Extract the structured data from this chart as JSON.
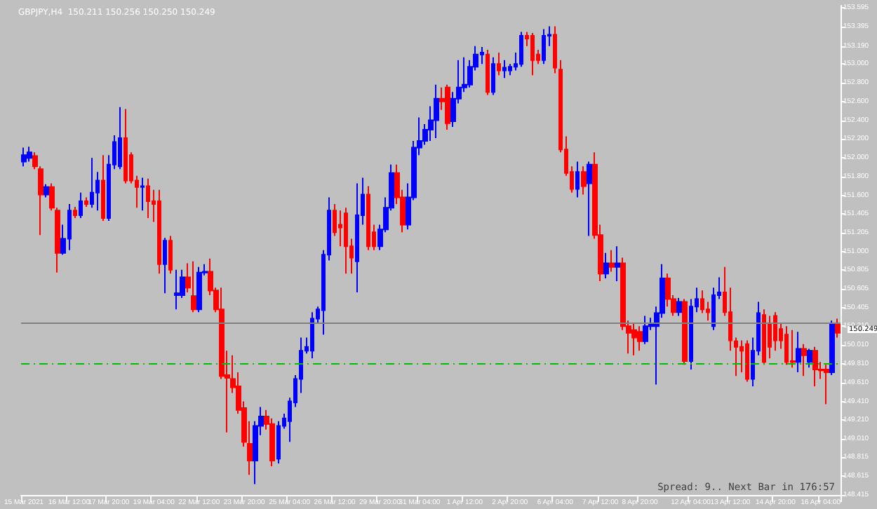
{
  "chart_data": {
    "type": "candlestick",
    "title": "GBPJPY,H4  150.211 150.256 150.250 150.249",
    "categories": [
      "15 Mar 2021",
      null,
      null,
      null,
      null,
      null,
      null,
      null,
      "16 Mar 12:00",
      null,
      null,
      null,
      null,
      null,
      null,
      "17 Mar 20:00",
      null,
      null,
      null,
      null,
      null,
      null,
      null,
      "19 Mar 04:00",
      null,
      null,
      null,
      null,
      null,
      null,
      null,
      "22 Mar 12:00",
      null,
      null,
      null,
      null,
      null,
      null,
      null,
      "23 Mar 20:00",
      null,
      null,
      null,
      null,
      null,
      null,
      null,
      "25 Mar 04:00",
      null,
      null,
      null,
      null,
      null,
      null,
      null,
      "26 Mar 12:00",
      null,
      null,
      null,
      null,
      null,
      null,
      null,
      "29 Mar 20:00",
      null,
      null,
      null,
      null,
      null,
      null,
      "31 Mar 04:00",
      null,
      null,
      null,
      null,
      null,
      null,
      null,
      "1 Apr 12:00",
      null,
      null,
      null,
      null,
      null,
      null,
      null,
      "2 Apr 20:00",
      null,
      null,
      null,
      null,
      null,
      null,
      null,
      "6 Apr 04:00",
      null,
      null,
      null,
      null,
      null,
      null,
      null,
      "7 Apr 12:00",
      null,
      null,
      null,
      null,
      null,
      null,
      "8 Apr 20:00",
      null,
      null,
      null,
      null,
      null,
      null,
      null,
      null,
      "12 Apr 04:00",
      null,
      null,
      null,
      null,
      null,
      null,
      "13 Apr 12:00",
      null,
      null,
      null,
      null,
      null,
      null,
      null,
      "14 Apr 20:00",
      null,
      null,
      null,
      null,
      null,
      null,
      null,
      "16 Apr 04:00",
      null,
      null,
      null
    ],
    "ohlc": [
      [
        151.96,
        152.11,
        151.91,
        152.03
      ],
      [
        152.0,
        152.12,
        151.96,
        152.06
      ],
      [
        152.02,
        152.06,
        151.88,
        151.91
      ],
      [
        151.88,
        151.91,
        151.18,
        151.61
      ],
      [
        151.61,
        151.72,
        151.58,
        151.69
      ],
      [
        151.69,
        151.73,
        151.44,
        151.47
      ],
      [
        151.44,
        151.47,
        150.78,
        150.99
      ],
      [
        150.99,
        151.29,
        150.97,
        151.14
      ],
      [
        151.14,
        151.51,
        151.02,
        151.44
      ],
      [
        151.44,
        151.48,
        151.36,
        151.39
      ],
      [
        151.39,
        151.63,
        151.36,
        151.54
      ],
      [
        151.54,
        151.58,
        151.48,
        151.51
      ],
      [
        151.51,
        152.0,
        151.47,
        151.63
      ],
      [
        151.63,
        151.85,
        151.44,
        151.76
      ],
      [
        151.76,
        152.03,
        151.33,
        151.36
      ],
      [
        151.36,
        152.03,
        151.33,
        151.93
      ],
      [
        151.93,
        152.24,
        151.88,
        152.17
      ],
      [
        151.91,
        152.54,
        151.88,
        152.21
      ],
      [
        152.21,
        152.52,
        151.73,
        151.76
      ],
      [
        152.03,
        152.06,
        151.73,
        151.76
      ],
      [
        151.76,
        151.81,
        151.47,
        151.69
      ],
      [
        151.69,
        151.79,
        151.44,
        151.7
      ],
      [
        151.7,
        151.78,
        151.36,
        151.54
      ],
      [
        151.54,
        151.66,
        151.32,
        151.51
      ],
      [
        151.54,
        151.66,
        150.77,
        150.87
      ],
      [
        150.87,
        151.15,
        150.56,
        151.12
      ],
      [
        151.12,
        151.17,
        150.77,
        150.81
      ],
      [
        150.54,
        150.81,
        150.39,
        150.56
      ],
      [
        150.54,
        150.81,
        150.51,
        150.73
      ],
      [
        150.73,
        150.88,
        150.57,
        150.62
      ],
      [
        150.53,
        150.9,
        150.36,
        150.39
      ],
      [
        150.39,
        150.84,
        150.36,
        150.78
      ],
      [
        150.78,
        150.87,
        150.75,
        150.79
      ],
      [
        150.79,
        150.93,
        150.54,
        150.59
      ],
      [
        150.59,
        150.62,
        150.36,
        150.39
      ],
      [
        150.39,
        150.62,
        149.65,
        149.68
      ],
      [
        149.69,
        149.95,
        149.08,
        149.66
      ],
      [
        149.65,
        149.9,
        149.5,
        149.56
      ],
      [
        149.57,
        149.72,
        149.28,
        149.32
      ],
      [
        149.34,
        149.41,
        148.93,
        148.98
      ],
      [
        148.96,
        149.2,
        148.63,
        148.78
      ],
      [
        148.78,
        149.2,
        148.53,
        149.15
      ],
      [
        149.15,
        149.35,
        149.05,
        149.25
      ],
      [
        149.25,
        149.32,
        149.11,
        149.17
      ],
      [
        149.17,
        149.23,
        148.72,
        148.78
      ],
      [
        148.8,
        149.2,
        148.75,
        149.15
      ],
      [
        149.15,
        149.28,
        149.12,
        149.23
      ],
      [
        149.2,
        149.45,
        148.98,
        149.41
      ],
      [
        149.4,
        149.69,
        149.35,
        149.65
      ],
      [
        149.65,
        150.09,
        149.5,
        149.95
      ],
      [
        149.95,
        150.09,
        149.92,
        149.99
      ],
      [
        149.95,
        150.36,
        149.87,
        150.29
      ],
      [
        150.29,
        150.42,
        150.24,
        150.39
      ],
      [
        150.38,
        151.02,
        150.12,
        150.97
      ],
      [
        150.97,
        151.58,
        150.91,
        151.44
      ],
      [
        151.44,
        151.51,
        151.17,
        151.21
      ],
      [
        151.29,
        151.44,
        151.06,
        151.26
      ],
      [
        151.41,
        151.47,
        150.77,
        151.06
      ],
      [
        151.06,
        151.14,
        150.77,
        150.94
      ],
      [
        150.9,
        151.73,
        150.57,
        151.39
      ],
      [
        151.39,
        151.79,
        151.29,
        151.61
      ],
      [
        151.61,
        151.7,
        151.02,
        151.06
      ],
      [
        151.21,
        151.29,
        151.02,
        151.06
      ],
      [
        151.06,
        151.29,
        151.02,
        151.24
      ],
      [
        151.24,
        151.58,
        151.21,
        151.47
      ],
      [
        151.47,
        151.93,
        151.44,
        151.84
      ],
      [
        151.84,
        151.93,
        151.51,
        151.58
      ],
      [
        151.58,
        151.66,
        151.21,
        151.29
      ],
      [
        151.29,
        151.73,
        151.24,
        151.58
      ],
      [
        151.58,
        152.18,
        151.55,
        152.11
      ],
      [
        152.11,
        152.43,
        152.03,
        152.18
      ],
      [
        152.18,
        152.36,
        152.14,
        152.3
      ],
      [
        152.3,
        152.55,
        152.18,
        152.4
      ],
      [
        152.4,
        152.78,
        152.21,
        152.63
      ],
      [
        152.63,
        152.75,
        152.51,
        152.6
      ],
      [
        152.75,
        152.78,
        152.3,
        152.37
      ],
      [
        152.39,
        152.7,
        152.33,
        152.63
      ],
      [
        152.63,
        153.04,
        152.58,
        152.75
      ],
      [
        152.75,
        153.07,
        152.7,
        152.78
      ],
      [
        152.78,
        153.04,
        152.75,
        152.97
      ],
      [
        152.97,
        153.19,
        152.93,
        153.1
      ],
      [
        153.1,
        153.18,
        153.0,
        153.12
      ],
      [
        153.1,
        153.15,
        152.67,
        152.7
      ],
      [
        152.7,
        153.07,
        152.67,
        153.0
      ],
      [
        153.0,
        153.12,
        152.88,
        152.93
      ],
      [
        152.93,
        153.04,
        152.85,
        152.96
      ],
      [
        152.93,
        153.0,
        152.88,
        152.97
      ],
      [
        152.97,
        153.12,
        152.93,
        153.0
      ],
      [
        153.0,
        153.34,
        152.97,
        153.3
      ],
      [
        153.3,
        153.34,
        153.19,
        153.27
      ],
      [
        153.3,
        153.33,
        152.88,
        153.04
      ],
      [
        153.1,
        153.15,
        153.0,
        153.04
      ],
      [
        153.04,
        153.37,
        153.0,
        153.3
      ],
      [
        153.3,
        153.4,
        153.19,
        153.31
      ],
      [
        153.31,
        153.4,
        152.9,
        152.96
      ],
      [
        152.94,
        153.04,
        152.06,
        152.09
      ],
      [
        152.09,
        152.23,
        151.81,
        151.84
      ],
      [
        151.85,
        151.91,
        151.63,
        151.67
      ],
      [
        151.67,
        151.96,
        151.58,
        151.85
      ],
      [
        151.85,
        151.91,
        151.61,
        151.7
      ],
      [
        151.73,
        151.96,
        151.17,
        151.93
      ],
      [
        151.93,
        152.06,
        151.14,
        151.18
      ],
      [
        151.18,
        151.29,
        150.69,
        150.77
      ],
      [
        150.77,
        150.99,
        150.72,
        150.88
      ],
      [
        150.88,
        151.02,
        150.79,
        150.84
      ],
      [
        150.84,
        151.06,
        150.69,
        150.88
      ],
      [
        150.88,
        150.94,
        150.17,
        150.21
      ],
      [
        150.21,
        150.27,
        149.92,
        150.14
      ],
      [
        150.17,
        150.24,
        149.9,
        150.09
      ],
      [
        150.15,
        150.21,
        149.95,
        150.05
      ],
      [
        150.05,
        150.32,
        150.02,
        150.21
      ],
      [
        150.21,
        150.3,
        150.17,
        150.23
      ],
      [
        150.21,
        150.42,
        149.59,
        150.35
      ],
      [
        150.35,
        150.87,
        150.3,
        150.72
      ],
      [
        150.72,
        150.77,
        150.42,
        150.5
      ],
      [
        150.5,
        150.54,
        150.32,
        150.36
      ],
      [
        150.36,
        150.51,
        150.32,
        150.47
      ],
      [
        150.47,
        150.5,
        149.8,
        149.84
      ],
      [
        149.84,
        150.5,
        149.75,
        150.42
      ],
      [
        150.42,
        150.62,
        150.36,
        150.5
      ],
      [
        150.5,
        150.59,
        150.35,
        150.39
      ],
      [
        150.39,
        150.47,
        150.27,
        150.36
      ],
      [
        150.21,
        150.62,
        150.17,
        150.54
      ],
      [
        150.54,
        150.73,
        150.5,
        150.57
      ],
      [
        150.57,
        150.84,
        150.32,
        150.36
      ],
      [
        150.36,
        150.62,
        149.95,
        150.06
      ],
      [
        150.05,
        150.09,
        149.68,
        149.99
      ],
      [
        149.99,
        150.06,
        149.72,
        149.95
      ],
      [
        150.02,
        150.06,
        149.62,
        149.65
      ],
      [
        149.65,
        150.09,
        149.57,
        149.95
      ],
      [
        149.95,
        150.47,
        149.9,
        150.35
      ],
      [
        150.33,
        150.39,
        149.8,
        149.83
      ],
      [
        150.24,
        150.32,
        149.87,
        149.99
      ],
      [
        150.32,
        150.36,
        149.95,
        150.06
      ],
      [
        150.18,
        150.24,
        149.97,
        150.06
      ],
      [
        150.12,
        150.21,
        149.8,
        149.83
      ],
      [
        149.84,
        150.17,
        149.77,
        149.83
      ],
      [
        149.83,
        150.15,
        149.72,
        149.97
      ],
      [
        149.97,
        150.02,
        149.68,
        149.9
      ],
      [
        149.83,
        149.97,
        149.77,
        149.95
      ],
      [
        149.95,
        149.99,
        149.57,
        149.75
      ],
      [
        149.75,
        149.83,
        149.65,
        149.74
      ],
      [
        149.75,
        149.8,
        149.38,
        149.72
      ],
      [
        149.72,
        150.27,
        149.69,
        150.24
      ],
      [
        150.24,
        150.29,
        150.09,
        150.14
      ]
    ],
    "colors": [
      "#0000ff",
      "#0000ff",
      "#ff0000",
      "#ff0000",
      "#0000ff",
      "#ff0000",
      "#ff0000",
      "#0000ff",
      "#0000ff",
      "#ff0000",
      "#0000ff",
      "#ff0000",
      "#0000ff",
      "#0000ff",
      "#ff0000",
      "#0000ff",
      "#0000ff",
      "#0000ff",
      "#ff0000",
      "#ff0000",
      "#ff0000",
      "#0000ff",
      "#ff0000",
      "#ff0000",
      "#ff0000",
      "#0000ff",
      "#ff0000",
      "#0000ff",
      "#0000ff",
      "#ff0000",
      "#ff0000",
      "#0000ff",
      "#0000ff",
      "#ff0000",
      "#ff0000",
      "#ff0000",
      "#ff0000",
      "#ff0000",
      "#ff0000",
      "#ff0000",
      "#ff0000",
      "#0000ff",
      "#0000ff",
      "#ff0000",
      "#ff0000",
      "#0000ff",
      "#0000ff",
      "#0000ff",
      "#0000ff",
      "#0000ff",
      "#0000ff",
      "#0000ff",
      "#0000ff",
      "#0000ff",
      "#0000ff",
      "#ff0000",
      "#ff0000",
      "#ff0000",
      "#ff0000",
      "#0000ff",
      "#0000ff",
      "#ff0000",
      "#ff0000",
      "#0000ff",
      "#0000ff",
      "#0000ff",
      "#ff0000",
      "#ff0000",
      "#0000ff",
      "#0000ff",
      "#0000ff",
      "#0000ff",
      "#0000ff",
      "#0000ff",
      "#ff0000",
      "#ff0000",
      "#0000ff",
      "#0000ff",
      "#0000ff",
      "#0000ff",
      "#0000ff",
      "#0000ff",
      "#ff0000",
      "#0000ff",
      "#ff0000",
      "#0000ff",
      "#0000ff",
      "#0000ff",
      "#0000ff",
      "#ff0000",
      "#ff0000",
      "#ff0000",
      "#0000ff",
      "#0000ff",
      "#ff0000",
      "#ff0000",
      "#ff0000",
      "#ff0000",
      "#0000ff",
      "#ff0000",
      "#0000ff",
      "#ff0000",
      "#ff0000",
      "#0000ff",
      "#ff0000",
      "#0000ff",
      "#ff0000",
      "#ff0000",
      "#ff0000",
      "#ff0000",
      "#0000ff",
      "#0000ff",
      "#0000ff",
      "#0000ff",
      "#ff0000",
      "#ff0000",
      "#0000ff",
      "#ff0000",
      "#0000ff",
      "#0000ff",
      "#ff0000",
      "#ff0000",
      "#0000ff",
      "#0000ff",
      "#ff0000",
      "#ff0000",
      "#ff0000",
      "#ff0000",
      "#ff0000",
      "#0000ff",
      "#0000ff",
      "#ff0000",
      "#ff0000",
      "#ff0000",
      "#ff0000",
      "#ff0000",
      "#ff0000",
      "#0000ff",
      "#ff0000",
      "#0000ff",
      "#ff0000",
      "#ff0000",
      "#ff0000",
      "#0000ff",
      "#ff0000"
    ],
    "ylim": [
      148.415,
      153.62
    ],
    "yticks": [
      {
        "value": 153.595,
        "label": "153.595"
      },
      {
        "value": 153.395,
        "label": "153.395"
      },
      {
        "value": 153.19,
        "label": "153.190"
      },
      {
        "value": 153,
        "label": "153.000"
      },
      {
        "value": 152.8,
        "label": "152.800"
      },
      {
        "value": 152.6,
        "label": "152.600"
      },
      {
        "value": 152.4,
        "label": "152.400"
      },
      {
        "value": 152.2,
        "label": "152.200"
      },
      {
        "value": 152,
        "label": "152.000"
      },
      {
        "value": 151.8,
        "label": "151.800"
      },
      {
        "value": 151.6,
        "label": "151.600"
      },
      {
        "value": 151.405,
        "label": "151.405"
      },
      {
        "value": 151.205,
        "label": "151.205"
      },
      {
        "value": 151,
        "label": "151.000"
      },
      {
        "value": 150.805,
        "label": "150.805"
      },
      {
        "value": 150.605,
        "label": "150.605"
      },
      {
        "value": 150.405,
        "label": "150.405"
      },
      {
        "value": 150.21,
        "label": "150.210"
      },
      {
        "value": 150.01,
        "label": "150.010"
      },
      {
        "value": 149.81,
        "label": "149.810"
      },
      {
        "value": 149.61,
        "label": "149.610"
      },
      {
        "value": 149.41,
        "label": "149.410"
      },
      {
        "value": 149.21,
        "label": "149.210"
      },
      {
        "value": 149.01,
        "label": "149.010"
      },
      {
        "value": 148.815,
        "label": "148.815"
      },
      {
        "value": 148.615,
        "label": "148.615"
      },
      {
        "value": 148.415,
        "label": "148.415"
      }
    ],
    "ref_lines": [
      {
        "axis": "y",
        "value": 150.249,
        "label": "150.249",
        "color": "#808080",
        "line_style": "solid"
      },
      {
        "axis": "y",
        "value": 149.81,
        "color": "#00c000",
        "line_style": "dashed"
      }
    ],
    "annotations": [
      "Spread: 9.. Next Bar in 176:57"
    ],
    "grid": false
  }
}
